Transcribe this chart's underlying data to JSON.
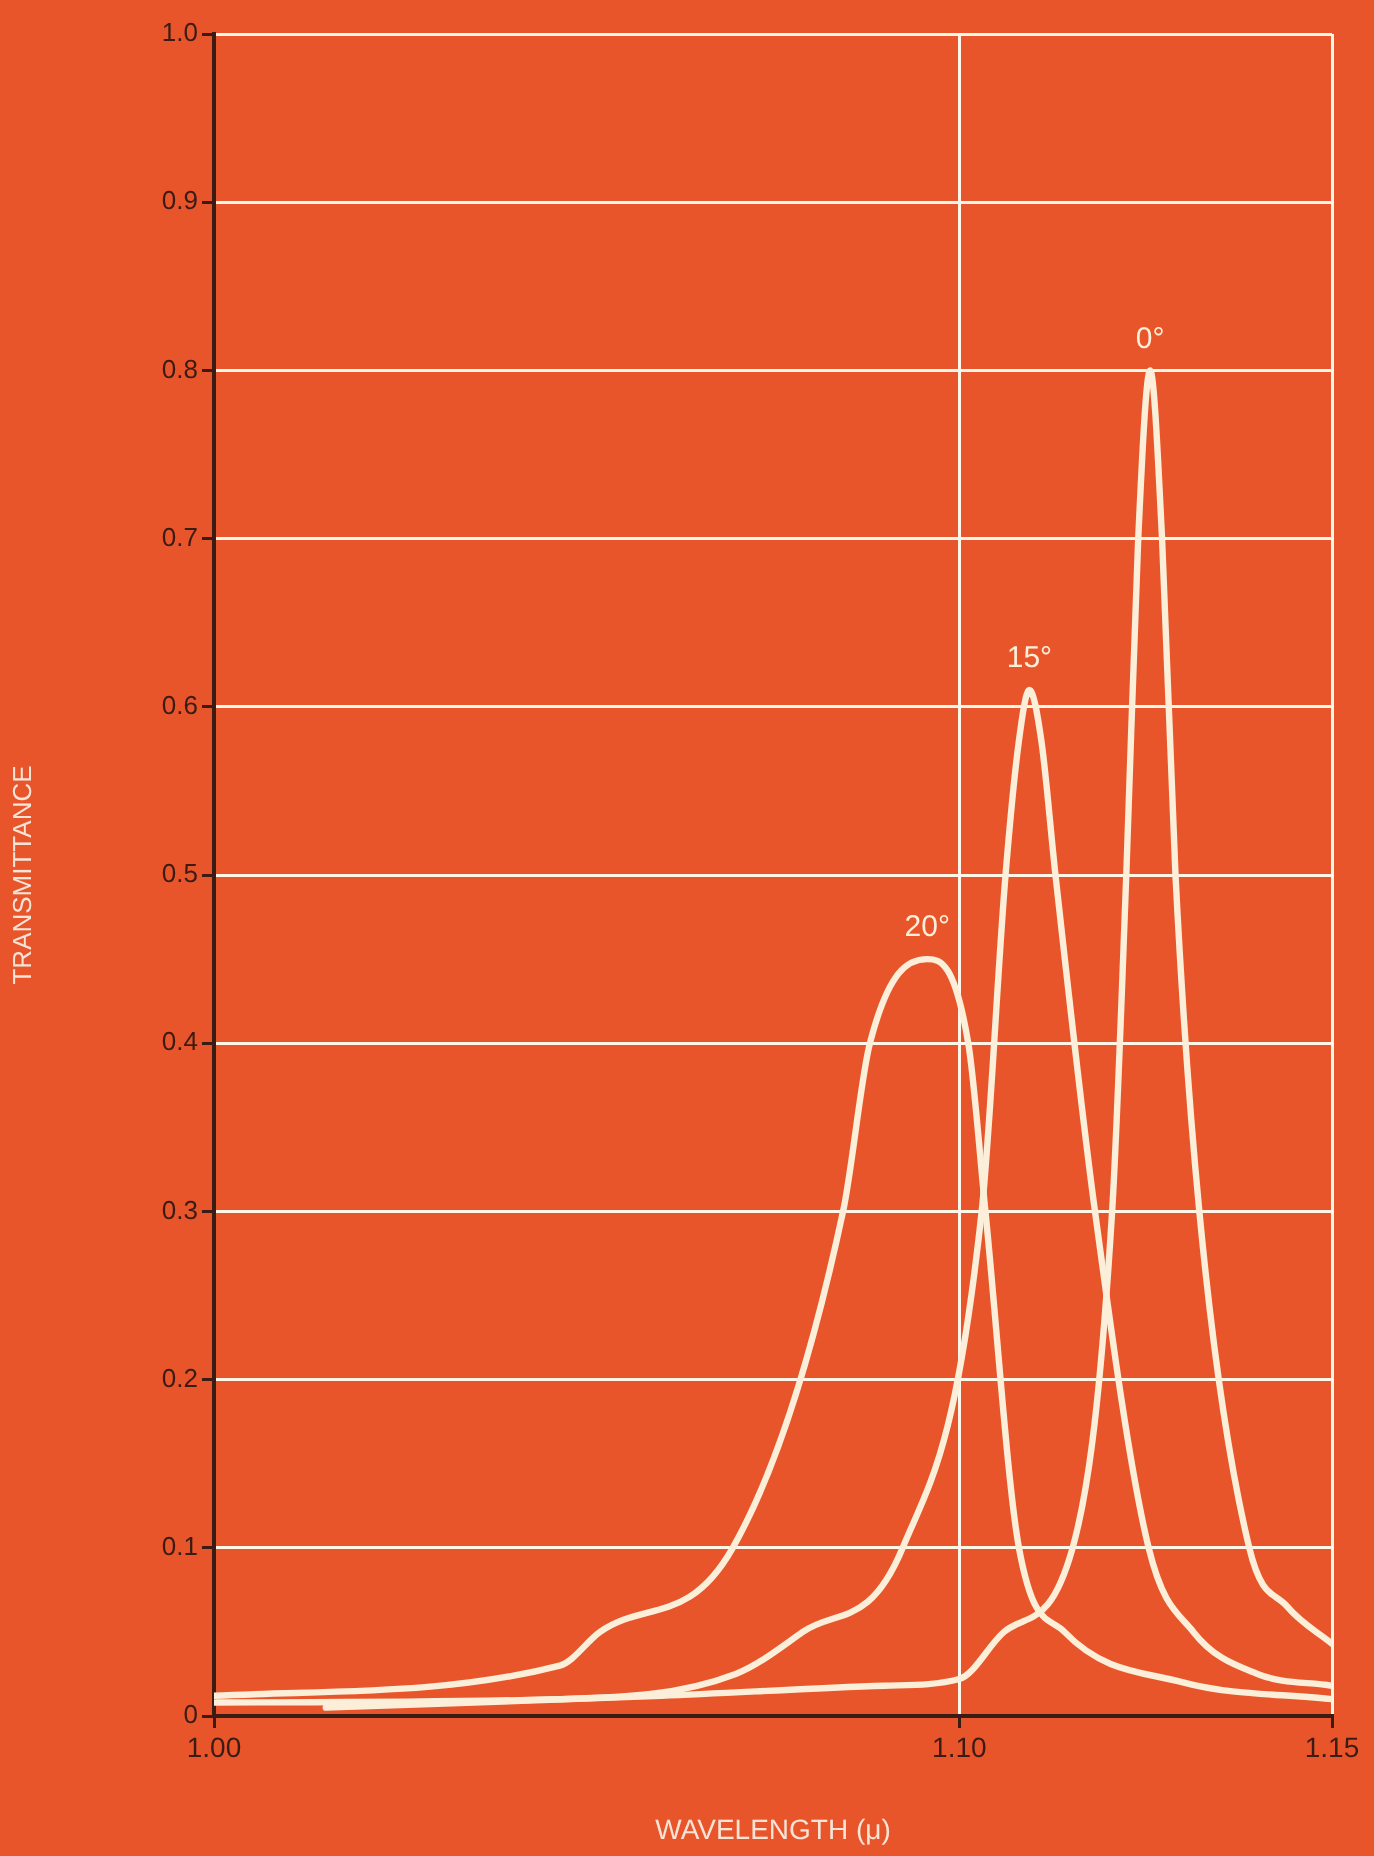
{
  "chart_data": {
    "type": "line",
    "xlabel": "WAVELENGTH (μ)",
    "ylabel": "TRANSMITTANCE",
    "xlim": [
      1.0,
      1.15
    ],
    "xticks": [
      {
        "value": 1.0,
        "label": "1.00"
      },
      {
        "value": 1.1,
        "label": "1.10"
      },
      1.15
    ],
    "ylim": [
      0,
      1.0
    ],
    "yticks": [
      0,
      0.1,
      0.2,
      0.3,
      0.4,
      0.5,
      0.6,
      0.7,
      0.8,
      0.9,
      {
        "value": 1.0,
        "label": "1.0"
      }
    ],
    "grid": true,
    "legend": false,
    "marker": "none",
    "line_style": "solid",
    "series": [
      {
        "name": "0°",
        "color": "#fbefd9",
        "x": [
          1.015,
          1.06,
          1.09,
          1.1,
          1.106,
          1.1152,
          1.1205,
          1.1224,
          1.124,
          1.1256,
          1.1272,
          1.129,
          1.1322,
          1.1389,
          1.144,
          1.15
        ],
        "values": [
          0.005,
          0.012,
          0.018,
          0.022,
          0.05,
          0.1,
          0.3,
          0.5,
          0.7,
          0.8,
          0.7,
          0.5,
          0.3,
          0.1,
          0.065,
          0.043
        ]
      },
      {
        "name": "15°",
        "color": "#fbefd9",
        "x": [
          1.0,
          1.046,
          1.07,
          1.079,
          1.0924,
          1.103,
          1.1062,
          1.108,
          1.1094,
          1.111,
          1.1129,
          1.1182,
          1.1254,
          1.1314,
          1.14,
          1.15
        ],
        "values": [
          0.008,
          0.01,
          0.025,
          0.05,
          0.1,
          0.3,
          0.5,
          0.58,
          0.61,
          0.58,
          0.5,
          0.3,
          0.1,
          0.05,
          0.025,
          0.018
        ]
      },
      {
        "name": "20°",
        "color": "#fbefd9",
        "x": [
          1.0,
          1.0464,
          1.0518,
          1.0696,
          1.0844,
          1.088,
          1.0957,
          1.1012,
          1.1035,
          1.108,
          1.1141,
          1.13,
          1.15
        ],
        "values": [
          0.012,
          0.03,
          0.05,
          0.1,
          0.3,
          0.4,
          0.45,
          0.4,
          0.3,
          0.1,
          0.05,
          0.02,
          0.01
        ]
      }
    ]
  }
}
